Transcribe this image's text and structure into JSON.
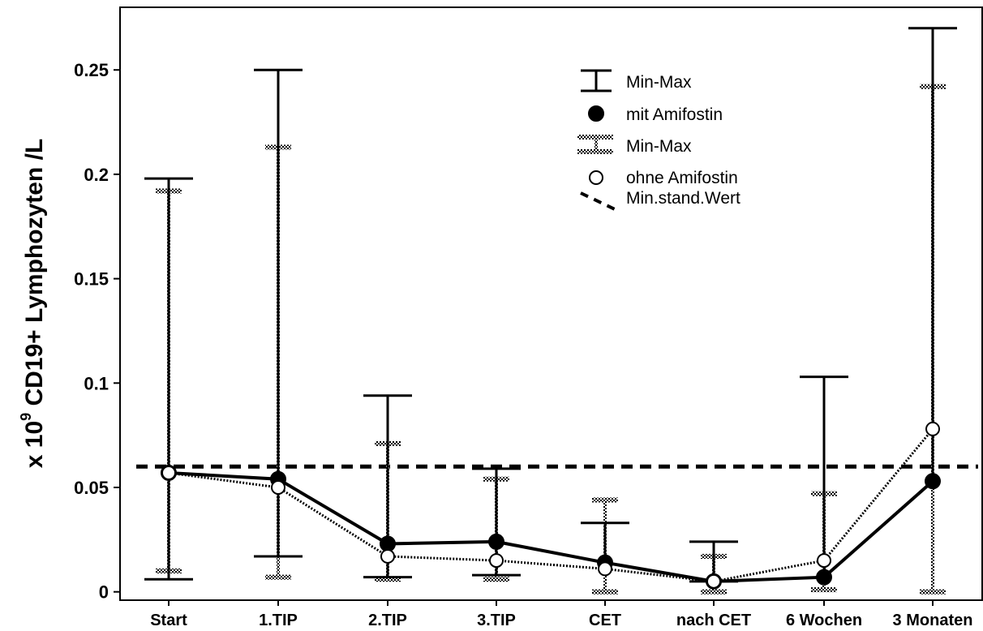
{
  "chart_data": {
    "type": "line",
    "categories": [
      "Start",
      "1.TIP",
      "2.TIP",
      "3.TIP",
      "CET",
      "nach CET",
      "6 Wochen",
      "3 Monaten"
    ],
    "ylabel_prefix": "x 10",
    "ylabel_exponent": "9",
    "ylabel_rest": " CD19+ Lymphozyten /L",
    "ylim": [
      -0.004,
      0.28
    ],
    "yticks": [
      0,
      0.05,
      0.1,
      0.15,
      0.2,
      0.25
    ],
    "ytick_labels": [
      "0",
      "0.05",
      "0.1",
      "0.15",
      "0.2",
      "0.25"
    ],
    "grid": false,
    "legend_position": "top-right",
    "reference_line": {
      "name": "Min.stand.Wert",
      "value": 0.06
    },
    "series": [
      {
        "name": "mit Amifostin",
        "range_name": "Min-Max",
        "marker": "filled",
        "line_style": "solid",
        "values": [
          0.057,
          0.054,
          0.023,
          0.024,
          0.014,
          0.005,
          0.007,
          0.053
        ],
        "min": [
          0.006,
          0.017,
          0.007,
          0.008,
          null,
          0.005,
          null,
          null
        ],
        "max": [
          0.198,
          0.25,
          0.094,
          0.059,
          0.033,
          0.024,
          0.103,
          0.27
        ]
      },
      {
        "name": "ohne Amifostin",
        "range_name": "Min-Max",
        "marker": "open",
        "line_style": "dotted",
        "values": [
          0.057,
          0.05,
          0.017,
          0.015,
          0.011,
          0.005,
          0.015,
          0.078
        ],
        "min": [
          0.01,
          0.007,
          0.006,
          0.006,
          0.0,
          0.0,
          0.001,
          0.0
        ],
        "max": [
          0.192,
          0.213,
          0.071,
          0.054,
          0.044,
          0.017,
          0.047,
          0.242
        ]
      }
    ]
  }
}
